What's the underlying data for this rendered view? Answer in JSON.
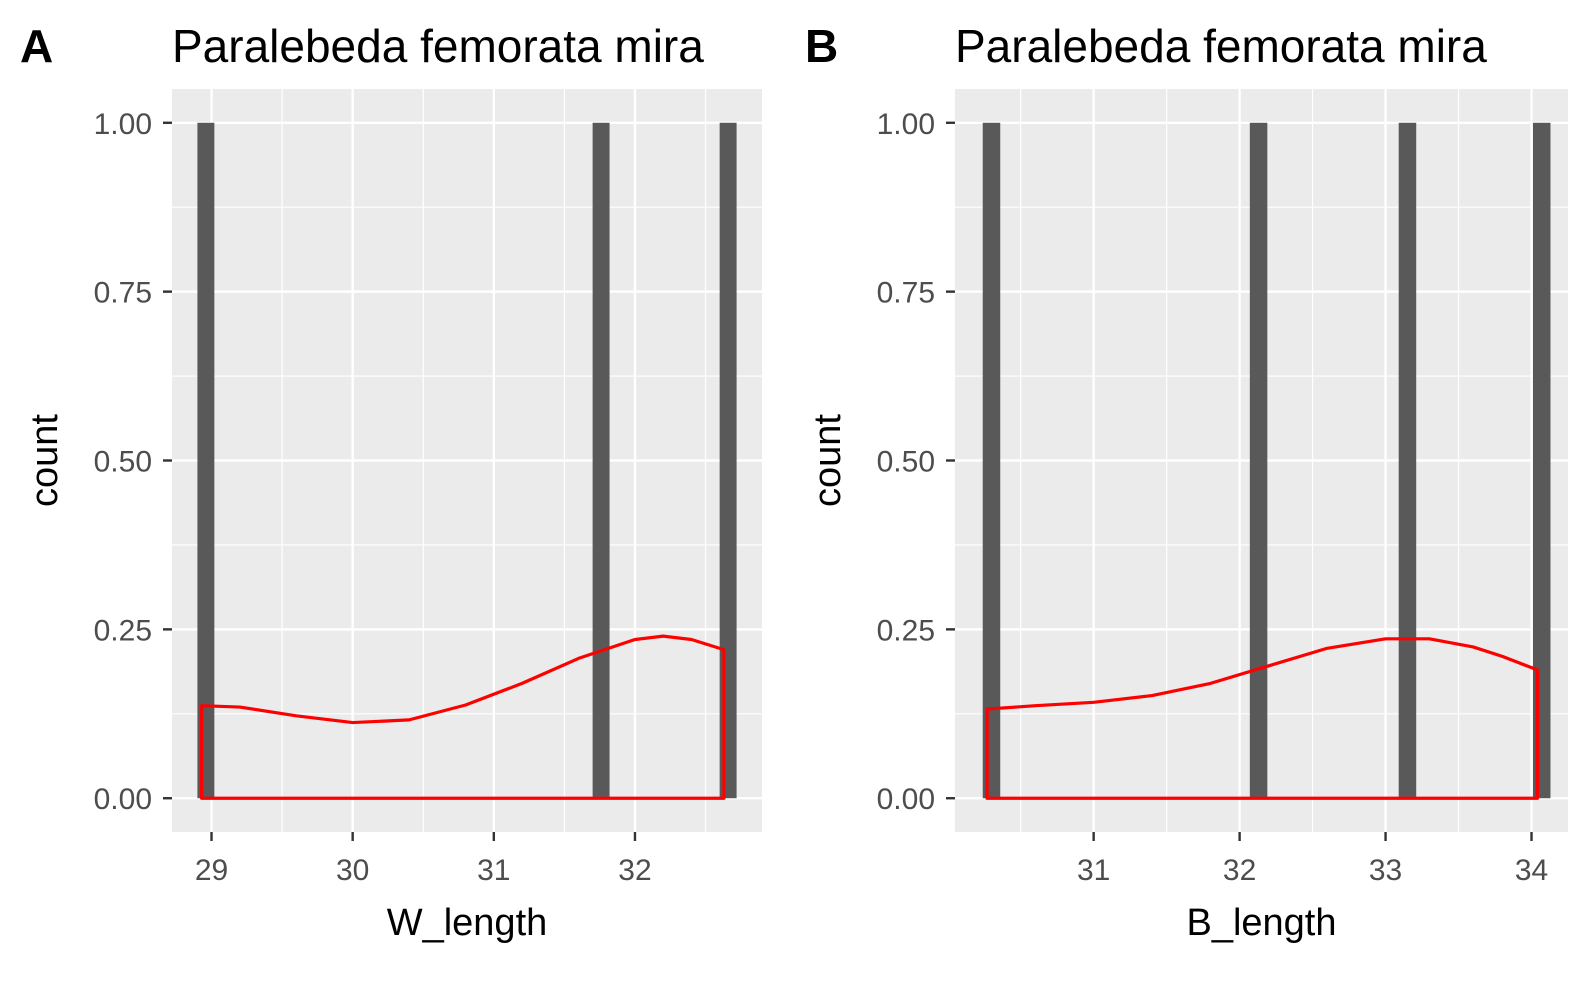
{
  "chart_data": [
    {
      "type": "bar",
      "tag": "A",
      "title": "Paralebeda femorata mira",
      "xlabel": "W_length",
      "ylabel": "count",
      "xlim": [
        28.72,
        32.9
      ],
      "ylim": [
        -0.05,
        1.05
      ],
      "x_ticks": [
        "29",
        "30",
        "31",
        "32"
      ],
      "y_ticks": [
        "0.00",
        "0.25",
        "0.50",
        "0.75",
        "1.00"
      ],
      "bar_width": 0.12,
      "bars": [
        {
          "x": 28.96,
          "count": 1
        },
        {
          "x": 31.76,
          "count": 1
        },
        {
          "x": 32.66,
          "count": 1
        }
      ],
      "density_curve": {
        "color": "#ff0000",
        "x": [
          28.93,
          29.2,
          29.6,
          30.0,
          30.4,
          30.8,
          31.2,
          31.6,
          32.0,
          32.2,
          32.4,
          32.63
        ],
        "y": [
          0.137,
          0.135,
          0.122,
          0.112,
          0.116,
          0.138,
          0.17,
          0.207,
          0.235,
          0.24,
          0.235,
          0.22
        ]
      },
      "grid": true,
      "background": "#ebebeb",
      "bar_color": "#595959"
    },
    {
      "type": "bar",
      "tag": "B",
      "title": "Paralebeda femorata mira",
      "xlabel": "B_length",
      "ylabel": "count",
      "xlim": [
        30.05,
        34.25
      ],
      "ylim": [
        -0.05,
        1.05
      ],
      "x_ticks": [
        "31",
        "32",
        "33",
        "34"
      ],
      "y_ticks": [
        "0.00",
        "0.25",
        "0.50",
        "0.75",
        "1.00"
      ],
      "bar_width": 0.12,
      "bars": [
        {
          "x": 30.3,
          "count": 1
        },
        {
          "x": 32.13,
          "count": 1
        },
        {
          "x": 33.15,
          "count": 1
        },
        {
          "x": 34.07,
          "count": 1
        }
      ],
      "density_curve": {
        "color": "#ff0000",
        "x": [
          30.27,
          30.6,
          31.0,
          31.4,
          31.8,
          32.2,
          32.6,
          33.0,
          33.3,
          33.6,
          33.8,
          34.04
        ],
        "y": [
          0.132,
          0.137,
          0.142,
          0.152,
          0.17,
          0.196,
          0.222,
          0.236,
          0.236,
          0.224,
          0.21,
          0.19
        ]
      },
      "grid": true,
      "background": "#ebebeb",
      "bar_color": "#595959"
    }
  ]
}
